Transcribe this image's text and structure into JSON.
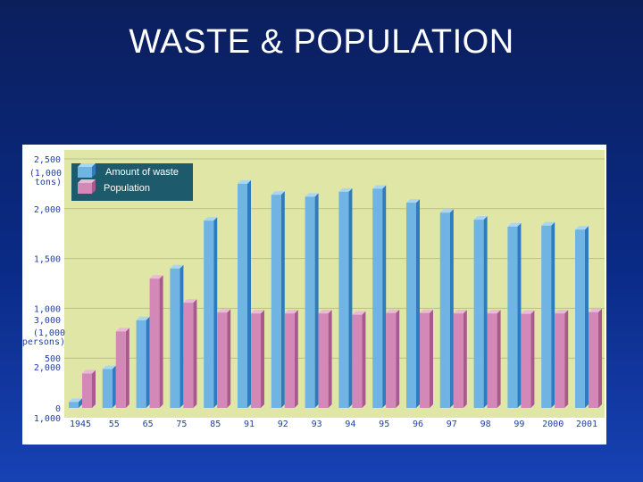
{
  "slide": {
    "title": "WASTE  & POPULATION"
  },
  "colors": {
    "waste_front": "#6fb4e2",
    "waste_side": "#2e7bbf",
    "waste_top": "#a9d6f3",
    "pop_front": "#d488b8",
    "pop_side": "#a85a8e",
    "pop_top": "#eab8d8",
    "plot_bg": "#dfe6a6",
    "legend_bg": "#1d5a6c",
    "grid": "#b9c285",
    "tick_text": "#1f3fa8"
  },
  "chart_data": {
    "type": "bar",
    "title": "",
    "categories": [
      "1945",
      "55",
      "65",
      "75",
      "85",
      "91",
      "92",
      "93",
      "94",
      "95",
      "96",
      "97",
      "98",
      "99",
      "2000",
      "2001"
    ],
    "series": [
      {
        "name": "Amount of waste",
        "axis": "left",
        "values": [
          60,
          390,
          880,
          1400,
          1880,
          2250,
          2140,
          2120,
          2170,
          2200,
          2060,
          1960,
          1890,
          1820,
          1830,
          1790
        ]
      },
      {
        "name": "Population",
        "axis": "right",
        "values": [
          1800,
          2780,
          4010,
          3450,
          3220,
          3200,
          3200,
          3200,
          3170,
          3210,
          3210,
          3200,
          3200,
          3190,
          3200,
          3230
        ]
      }
    ],
    "left_axis": {
      "unit": "(1,000\ntons)",
      "ticks": [
        "0",
        "500",
        "1,000",
        "1,500",
        "2,000",
        "2,500"
      ],
      "tick_values": [
        0,
        500,
        1000,
        1500,
        2000,
        2500
      ],
      "ylim": [
        0,
        2500
      ]
    },
    "right_axis": {
      "unit": "(1,000\npersons)",
      "ticks": [
        "1,000",
        "2,000",
        "3,000"
      ],
      "tick_values": [
        1000,
        2000,
        3000
      ],
      "ylim": [
        1000,
        6800
      ]
    },
    "grid": true,
    "legend_position": "top-left"
  }
}
